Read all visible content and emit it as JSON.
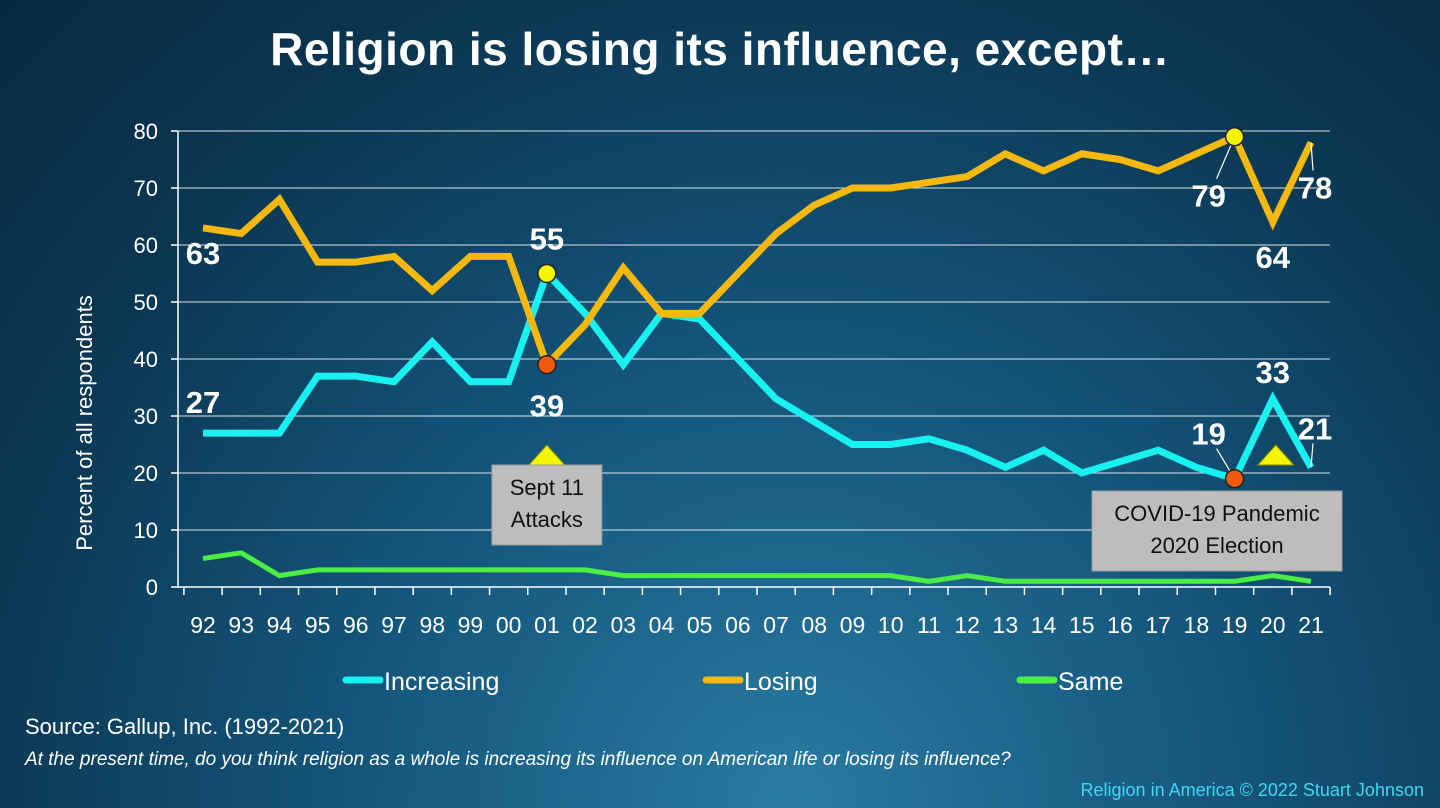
{
  "title": "Religion is losing its influence, except…",
  "source": "Source: Gallup, Inc. (1992-2021)",
  "question": "At the present time, do you think religion as a whole is increasing its influence on American life or losing its influence?",
  "copyright": "Religion in America © 2022 Stuart Johnson",
  "colors": {
    "increasing": "#19f0f0",
    "losing": "#f5b80f",
    "same": "#4cee46",
    "marker_yellow": "#f5f500",
    "marker_orange": "#f05a10",
    "callout_bg": "#bdbdbd",
    "grid": "#ffffff"
  },
  "chart_data": {
    "type": "line",
    "title": "Religion is losing its influence, except…",
    "ylabel": "Percent of all respondents",
    "xlabel": "",
    "ylim": [
      0,
      80
    ],
    "yticks": [
      0,
      10,
      20,
      30,
      40,
      50,
      60,
      70,
      80
    ],
    "grid": true,
    "legend_placement": "bottom",
    "categories": [
      "92",
      "93",
      "94",
      "95",
      "96",
      "97",
      "98",
      "99",
      "00",
      "01",
      "02",
      "03",
      "04",
      "05",
      "06",
      "07",
      "08",
      "09",
      "10",
      "11",
      "12",
      "13",
      "14",
      "15",
      "16",
      "17",
      "18",
      "19",
      "20",
      "21"
    ],
    "series": [
      {
        "name": "Increasing",
        "color_key": "increasing",
        "values": [
          27,
          27,
          27,
          37,
          37,
          36,
          43,
          36,
          36,
          55,
          48,
          39,
          48,
          47,
          40,
          33,
          29,
          25,
          25,
          26,
          24,
          21,
          24,
          20,
          22,
          24,
          21,
          19,
          33,
          21
        ]
      },
      {
        "name": "Losing",
        "color_key": "losing",
        "values": [
          63,
          62,
          68,
          57,
          57,
          58,
          52,
          58,
          58,
          39,
          46,
          56,
          48,
          48,
          55,
          62,
          67,
          70,
          70,
          71,
          72,
          76,
          73,
          76,
          75,
          73,
          76,
          79,
          64,
          78
        ]
      },
      {
        "name": "Same",
        "color_key": "same",
        "values": [
          5,
          6,
          2,
          3,
          3,
          3,
          3,
          3,
          3,
          3,
          3,
          2,
          2,
          2,
          2,
          2,
          2,
          2,
          2,
          1,
          2,
          1,
          1,
          1,
          1,
          1,
          1,
          1,
          2,
          1
        ]
      }
    ],
    "data_labels": [
      {
        "series": 1,
        "index": 0,
        "text": "63",
        "dx": 0,
        "dy": 36,
        "anchor": "middle"
      },
      {
        "series": 0,
        "index": 0,
        "text": "27",
        "dx": 0,
        "dy": -20,
        "anchor": "middle"
      },
      {
        "series": 0,
        "index": 9,
        "text": "55",
        "dx": 0,
        "dy": -24,
        "anchor": "middle"
      },
      {
        "series": 1,
        "index": 9,
        "text": "39",
        "dx": 0,
        "dy": 52,
        "anchor": "middle"
      },
      {
        "series": 1,
        "index": 27,
        "text": "79",
        "dx": -26,
        "dy": 70,
        "anchor": "middle"
      },
      {
        "series": 1,
        "index": 28,
        "text": "64",
        "dx": 0,
        "dy": 46,
        "anchor": "middle"
      },
      {
        "series": 1,
        "index": 29,
        "text": "78",
        "dx": 4,
        "dy": 56,
        "anchor": "middle"
      },
      {
        "series": 0,
        "index": 27,
        "text": "19",
        "dx": -26,
        "dy": -34,
        "anchor": "middle"
      },
      {
        "series": 0,
        "index": 28,
        "text": "33",
        "dx": 0,
        "dy": -16,
        "anchor": "middle"
      },
      {
        "series": 0,
        "index": 29,
        "text": "21",
        "dx": 4,
        "dy": -28,
        "anchor": "middle"
      }
    ],
    "highlight_markers": [
      {
        "series": 0,
        "index": 9,
        "color_key": "marker_yellow"
      },
      {
        "series": 1,
        "index": 9,
        "color_key": "marker_orange"
      },
      {
        "series": 1,
        "index": 27,
        "color_key": "marker_yellow"
      },
      {
        "series": 0,
        "index": 27,
        "color_key": "marker_orange"
      }
    ],
    "annotations": [
      {
        "index": 9,
        "lines": [
          "Sept 11",
          "Attacks"
        ]
      },
      {
        "index": 28,
        "lines": [
          "COVID-19 Pandemic",
          "2020 Election"
        ]
      }
    ]
  }
}
